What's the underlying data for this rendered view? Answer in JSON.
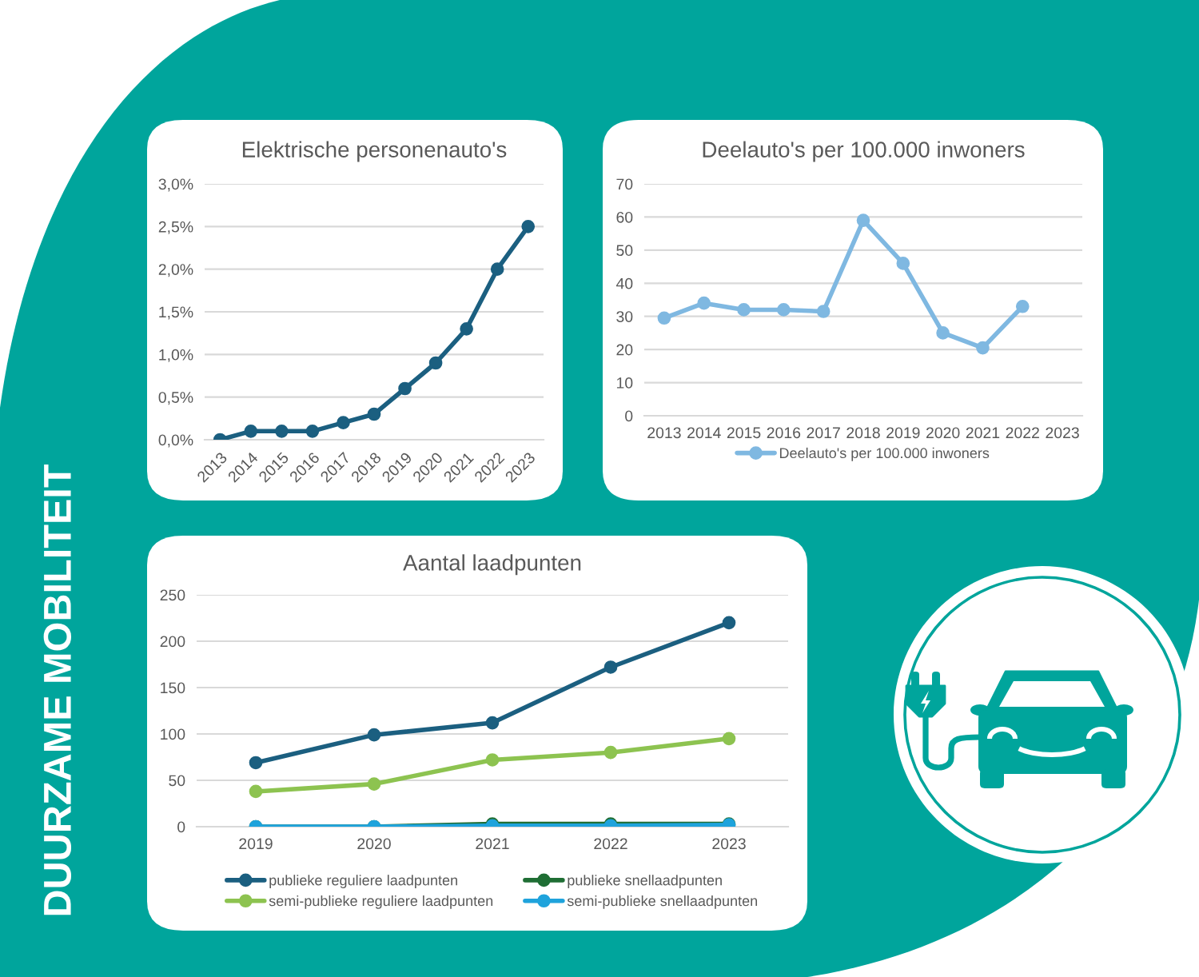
{
  "chart_data": [
    {
      "type": "line",
      "title": "Elektrische personenauto's",
      "categories": [
        "2013",
        "2014",
        "2015",
        "2016",
        "2017",
        "2018",
        "2019",
        "2020",
        "2021",
        "2022",
        "2023"
      ],
      "series": [
        {
          "color": "#1b5f80",
          "values": [
            0,
            0.1,
            0.1,
            0.1,
            0.2,
            0.3,
            0.6,
            0.9,
            1.3,
            2.0,
            2.5
          ]
        }
      ],
      "ylim": [
        0,
        3
      ],
      "yticks": [
        {
          "value": 0,
          "label": "0,0%"
        },
        {
          "value": 0.5,
          "label": "0,5%"
        },
        {
          "value": 1,
          "label": "1,0%"
        },
        {
          "value": 1.5,
          "label": "1,5%"
        },
        {
          "value": 2,
          "label": "2,0%"
        },
        {
          "value": 2.5,
          "label": "2,5%"
        },
        {
          "value": 3,
          "label": "3,0%"
        }
      ],
      "grid": "y",
      "legend": false,
      "marker": "circle",
      "line_style": "solid"
    },
    {
      "type": "line",
      "title": "Deelauto's per 100.000 inwoners",
      "categories": [
        "2013",
        "2014",
        "2015",
        "2016",
        "2017",
        "2018",
        "2019",
        "2020",
        "2021",
        "2022",
        "2023"
      ],
      "series": [
        {
          "name": "Deelauto's per 100.000 inwoners",
          "color": "#7fb8e1",
          "values": [
            29.5,
            34,
            32,
            32,
            31.5,
            59,
            46,
            25,
            20.5,
            33,
            null
          ]
        }
      ],
      "ylim": [
        0,
        70
      ],
      "yticks": [
        0,
        10,
        20,
        30,
        40,
        50,
        60,
        70
      ],
      "grid": "y",
      "legend": "bottom",
      "marker": "circle",
      "line_style": "solid"
    },
    {
      "type": "line",
      "title": "Aantal laadpunten",
      "categories": [
        "2019",
        "2020",
        "2021",
        "2022",
        "2023"
      ],
      "series": [
        {
          "name": "publieke reguliere laadpunten",
          "color": "#1b5f80",
          "values": [
            69,
            99,
            112,
            172,
            220
          ]
        },
        {
          "name": "semi-publieke reguliere laadpunten",
          "color": "#8dc350",
          "values": [
            38,
            46,
            72,
            80,
            95
          ]
        },
        {
          "name": "publieke snellaadpunten",
          "color": "#1f6e34",
          "values": [
            0,
            0,
            3,
            3,
            3
          ]
        },
        {
          "name": "semi-publieke snellaadpunten",
          "color": "#1fa3dc",
          "values": [
            0,
            0,
            1,
            1,
            2
          ]
        }
      ],
      "ylim": [
        0,
        250
      ],
      "yticks": [
        0,
        50,
        100,
        150,
        200,
        250
      ],
      "grid": "y",
      "legend": "bottom",
      "marker": "circle",
      "line_style": "solid"
    },
    {
      "type": "other",
      "title": "DUURZAME MOBILITEIT"
    }
  ]
}
